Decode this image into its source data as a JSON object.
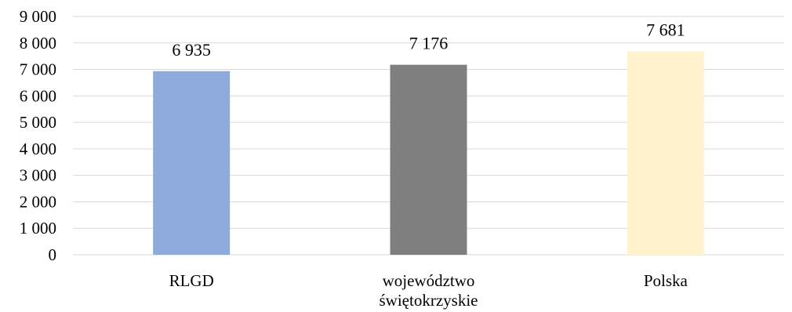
{
  "chart_data": {
    "type": "bar",
    "categories": [
      [
        "RLGD"
      ],
      [
        "województwo",
        "świętokrzyskie"
      ],
      [
        "Polska"
      ]
    ],
    "values": [
      6935,
      7176,
      7681
    ],
    "value_labels": [
      "6 935",
      "7 176",
      "7 681"
    ],
    "bar_colors": [
      "#8faadc",
      "#7f7f7f",
      "#fff2cc"
    ],
    "ylim": [
      0,
      9000
    ],
    "yticks": [
      0,
      1000,
      2000,
      3000,
      4000,
      5000,
      6000,
      7000,
      8000,
      9000
    ],
    "ytick_labels": [
      "0",
      "1 000",
      "2 000",
      "3 000",
      "4 000",
      "5 000",
      "6 000",
      "7 000",
      "8 000",
      "9 000"
    ],
    "gridlines": true,
    "gridline_color": "#d9d9d9",
    "legend": "none"
  }
}
